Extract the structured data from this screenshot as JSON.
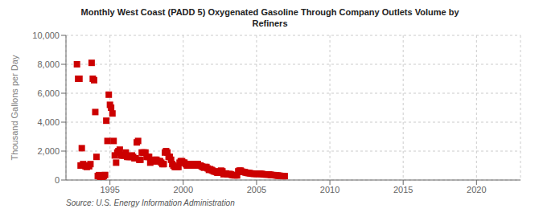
{
  "chart_data": {
    "type": "scatter",
    "title": "Monthly West Coast (PADD 5) Oxygenated Gasoline Through Company Outlets Volume by\nRefiners",
    "ylabel": "Thousand Gallons per Day",
    "source": "Source: U.S. Energy Information Administration",
    "color": "#cc0000",
    "marker": "square",
    "grid": true,
    "xlim": [
      1992.0,
      2023.0
    ],
    "ylim": [
      0,
      10000
    ],
    "xticks": [
      1995,
      2000,
      2005,
      2010,
      2015,
      2020
    ],
    "yticks": [
      0,
      {
        "value": 2000,
        "label": "2,000"
      },
      {
        "value": 4000,
        "label": "4,000"
      },
      {
        "value": 6000,
        "label": "6,000"
      },
      {
        "value": 8000,
        "label": "8,000"
      },
      {
        "value": 10000,
        "label": "10,000"
      }
    ],
    "x": [
      1992.75,
      1992.83,
      1992.92,
      1993.0,
      1993.08,
      1993.17,
      1993.25,
      1993.33,
      1993.42,
      1993.5,
      1993.58,
      1993.67,
      1993.75,
      1993.83,
      1993.92,
      1994.0,
      1994.08,
      1994.17,
      1994.25,
      1994.33,
      1994.42,
      1994.5,
      1994.58,
      1994.67,
      1994.75,
      1994.83,
      1994.92,
      1995.0,
      1995.08,
      1995.17,
      1995.25,
      1995.33,
      1995.42,
      1995.5,
      1995.58,
      1995.67,
      1995.75,
      1995.83,
      1995.92,
      1996.0,
      1996.08,
      1996.17,
      1996.25,
      1996.33,
      1996.42,
      1996.5,
      1996.58,
      1996.67,
      1996.75,
      1996.83,
      1996.92,
      1997.0,
      1997.08,
      1997.17,
      1997.25,
      1997.33,
      1997.42,
      1997.5,
      1997.58,
      1997.67,
      1997.75,
      1997.83,
      1997.92,
      1998.0,
      1998.08,
      1998.17,
      1998.25,
      1998.33,
      1998.42,
      1998.5,
      1998.58,
      1998.67,
      1998.75,
      1998.83,
      1998.92,
      1999.0,
      1999.08,
      1999.17,
      1999.25,
      1999.33,
      1999.42,
      1999.5,
      1999.58,
      1999.67,
      1999.75,
      1999.83,
      1999.92,
      2000.0,
      2000.08,
      2000.17,
      2000.25,
      2000.33,
      2000.42,
      2000.5,
      2000.58,
      2000.67,
      2000.75,
      2000.83,
      2000.92,
      2001.0,
      2001.08,
      2001.17,
      2001.25,
      2001.33,
      2001.42,
      2001.5,
      2001.58,
      2001.67,
      2001.75,
      2001.83,
      2001.92,
      2002.0,
      2002.08,
      2002.17,
      2002.25,
      2002.33,
      2002.42,
      2002.5,
      2002.58,
      2002.67,
      2002.75,
      2002.83,
      2002.92,
      2003.0,
      2003.08,
      2003.17,
      2003.25,
      2003.33,
      2003.42,
      2003.5,
      2003.58,
      2003.67,
      2003.75,
      2003.83,
      2003.92,
      2004.0,
      2004.08,
      2004.17,
      2004.25,
      2004.33,
      2004.42,
      2004.5,
      2004.58,
      2004.67,
      2004.75,
      2004.83,
      2004.92,
      2005.0,
      2005.08,
      2005.17,
      2005.25,
      2005.33,
      2005.42,
      2005.5,
      2005.58,
      2005.67,
      2005.75,
      2005.83,
      2005.92,
      2006.0,
      2006.08,
      2006.17,
      2006.25,
      2006.33,
      2006.42,
      2006.5,
      2006.58,
      2006.67,
      2006.75,
      2006.83,
      2006.92
    ],
    "values": [
      8000,
      7000,
      7000,
      1000,
      2200,
      1100,
      1000,
      950,
      900,
      1000,
      950,
      1100,
      8100,
      7000,
      6900,
      4700,
      1600,
      280,
      340,
      200,
      220,
      200,
      280,
      350,
      4100,
      2700,
      5900,
      5200,
      5000,
      4600,
      2700,
      1700,
      1200,
      1900,
      2000,
      2100,
      1700,
      1700,
      1700,
      1700,
      1900,
      1600,
      1600,
      1600,
      1600,
      1700,
      1600,
      1500,
      1500,
      2600,
      2700,
      1400,
      1400,
      1900,
      1900,
      1900,
      1900,
      1600,
      1600,
      1600,
      1200,
      1300,
      1300,
      1300,
      1400,
      1400,
      1300,
      1300,
      1300,
      1200,
      1100,
      1100,
      1900,
      2000,
      1900,
      1600,
      1600,
      1400,
      1100,
      1000,
      900,
      900,
      900,
      900,
      1200,
      1300,
      1300,
      1200,
      1200,
      1100,
      1000,
      1000,
      1000,
      1100,
      1100,
      1000,
      1100,
      1100,
      1100,
      1100,
      1000,
      1000,
      950,
      900,
      850,
      900,
      900,
      800,
      700,
      750,
      700,
      650,
      600,
      580,
      550,
      500,
      500,
      600,
      650,
      600,
      400,
      450,
      450,
      400,
      400,
      420,
      380,
      350,
      340,
      320,
      330,
      320,
      600,
      650,
      650,
      580,
      560,
      550,
      520,
      500,
      480,
      480,
      460,
      450,
      430,
      430,
      430,
      430,
      430,
      430,
      430,
      420,
      410,
      390,
      380,
      380,
      380,
      380,
      370,
      350,
      340,
      340,
      330,
      320,
      310,
      300,
      290,
      280,
      280,
      270,
      270
    ]
  }
}
